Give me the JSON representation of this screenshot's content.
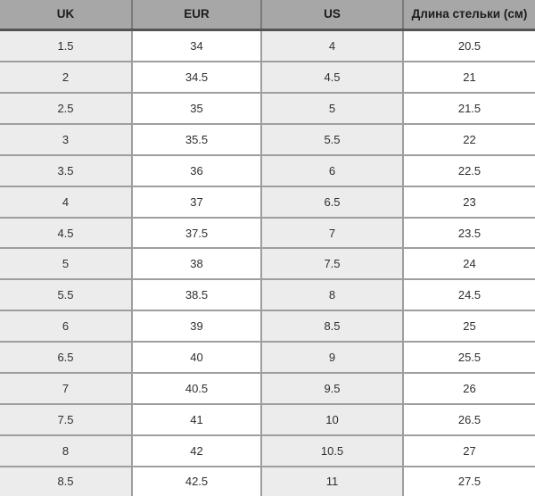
{
  "colors": {
    "header_bg": "#a7a7a7",
    "header_bottom_border": "#545454",
    "grid_border": "#9e9e9e",
    "odd_column_bg": "#ececec",
    "even_column_bg": "#ffffff",
    "header_text": "#1c1c1c",
    "cell_text": "#2f2f2f"
  },
  "chart_data": {
    "type": "table",
    "columns": [
      "UK",
      "EUR",
      "US",
      "Длина стельки (см)"
    ],
    "column_ids": [
      "uk",
      "eur",
      "us",
      "insole-length-cm"
    ],
    "rows": [
      [
        "1.5",
        "34",
        "4",
        "20.5"
      ],
      [
        "2",
        "34.5",
        "4.5",
        "21"
      ],
      [
        "2.5",
        "35",
        "5",
        "21.5"
      ],
      [
        "3",
        "35.5",
        "5.5",
        "22"
      ],
      [
        "3.5",
        "36",
        "6",
        "22.5"
      ],
      [
        "4",
        "37",
        "6.5",
        "23"
      ],
      [
        "4.5",
        "37.5",
        "7",
        "23.5"
      ],
      [
        "5",
        "38",
        "7.5",
        "24"
      ],
      [
        "5.5",
        "38.5",
        "8",
        "24.5"
      ],
      [
        "6",
        "39",
        "8.5",
        "25"
      ],
      [
        "6.5",
        "40",
        "9",
        "25.5"
      ],
      [
        "7",
        "40.5",
        "9.5",
        "26"
      ],
      [
        "7.5",
        "41",
        "10",
        "26.5"
      ],
      [
        "8",
        "42",
        "10.5",
        "27"
      ],
      [
        "8.5",
        "42.5",
        "11",
        "27.5"
      ]
    ]
  }
}
